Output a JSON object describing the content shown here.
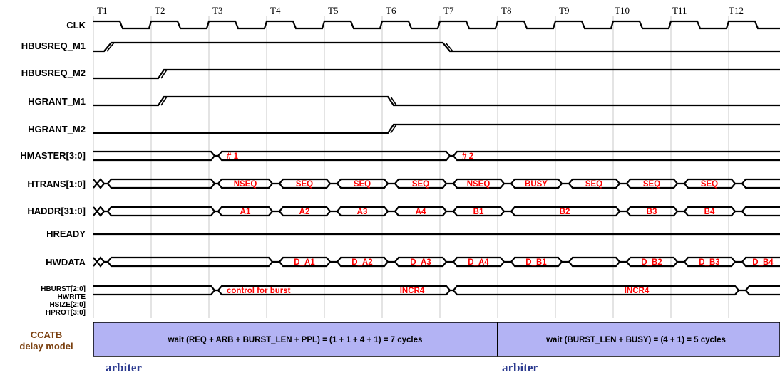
{
  "clock_labels": [
    "T1",
    "T2",
    "T3",
    "T4",
    "T5",
    "T6",
    "T7",
    "T8",
    "T9",
    "T10",
    "T11",
    "T12"
  ],
  "signals": {
    "clk": "CLK",
    "hbusreq_m1": "HBUSREQ_M1",
    "hbusreq_m2": "HBUSREQ_M2",
    "hgrant_m1": "HGRANT_M1",
    "hgrant_m2": "HGRANT_M2",
    "hmaster": "HMASTER[3:0]",
    "htrans": "HTRANS[1:0]",
    "haddr": "HADDR[31:0]",
    "hready": "HREADY",
    "hwdata": "HWDATA",
    "control": [
      "HBURST[2:0]",
      "HWRITE",
      "HSIZE[2:0]",
      "HPROT[3:0]"
    ]
  },
  "values": {
    "hmaster": [
      "# 1",
      "# 2"
    ],
    "htrans": [
      "NSEQ",
      "SEQ",
      "SEQ",
      "SEQ",
      "NSEQ",
      "BUSY",
      "SEQ",
      "SEQ",
      "SEQ"
    ],
    "haddr": [
      "A1",
      "A2",
      "A3",
      "A4",
      "B1",
      "B2",
      "B3",
      "B4"
    ],
    "hwdata": [
      "D_A1",
      "D_A2",
      "D_A3",
      "D_A4",
      "D_B1",
      "D_B2",
      "D_B3",
      "D_B4"
    ],
    "control": [
      "control for burst",
      "INCR4",
      "INCR4"
    ]
  },
  "delay_model": {
    "label": [
      "CCATB",
      "delay model"
    ],
    "box1": "wait (REQ + ARB + BURST_LEN + PPL) = (1 + 1 + 4 + 1) = 7 cycles",
    "box2": "wait (BURST_LEN + BUSY) = (4 + 1) = 5 cycles",
    "arbiter_left": "arbiter",
    "arbiter_right": "arbiter",
    "box_color": "#b3b3f4"
  },
  "colors": {
    "value_text": "#ff0000",
    "ccatb_label": "#7a3f0e",
    "arbiter_text": "#2b3a8f"
  }
}
